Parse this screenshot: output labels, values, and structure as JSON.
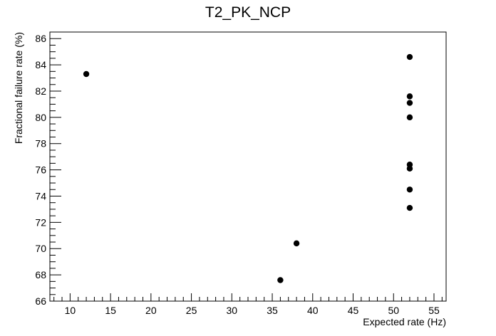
{
  "chart_data": {
    "type": "scatter",
    "title": "T2_PK_NCP",
    "xlabel": "Expected rate (Hz)",
    "ylabel": "Fractional failure rate (%)",
    "xlim": [
      7.5,
      56.5
    ],
    "ylim": [
      66,
      86.5
    ],
    "xticks": [
      10,
      15,
      20,
      25,
      30,
      35,
      40,
      45,
      50,
      55
    ],
    "yticks": [
      66,
      68,
      70,
      72,
      74,
      76,
      78,
      80,
      82,
      84,
      86
    ],
    "x_minor_step": 1,
    "y_minor_step": 0.5,
    "marker_color": "#000000",
    "grid": false,
    "points": [
      {
        "x": 12,
        "y": 83.3
      },
      {
        "x": 36,
        "y": 67.6
      },
      {
        "x": 38,
        "y": 70.4
      },
      {
        "x": 52,
        "y": 84.6
      },
      {
        "x": 52,
        "y": 81.6
      },
      {
        "x": 52,
        "y": 81.1
      },
      {
        "x": 52,
        "y": 80.0
      },
      {
        "x": 52,
        "y": 76.4
      },
      {
        "x": 52,
        "y": 76.1
      },
      {
        "x": 52,
        "y": 74.5
      },
      {
        "x": 52,
        "y": 73.1
      }
    ]
  }
}
